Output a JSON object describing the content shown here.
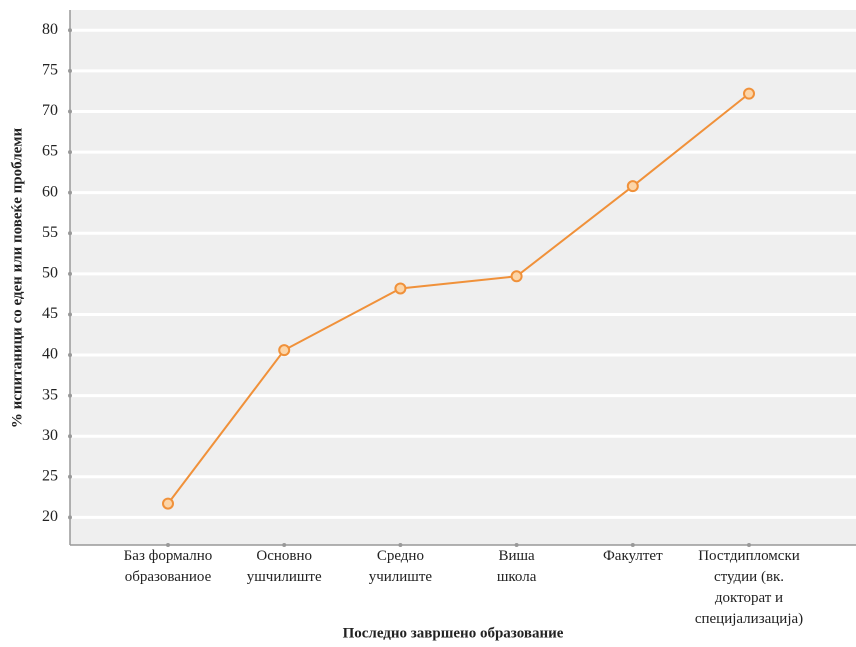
{
  "chart_data": {
    "type": "line",
    "x_label": "Последно завршено образование",
    "y_label": "% испитаници со еден или повеќе проблеми",
    "categories": [
      "Баз формално\nобразованиое",
      "Основно\nушчилиште",
      "Средно\nучилиште",
      "Виша\nшкола",
      "Факултет",
      "Постдипломски\nстудии (вк.\nдокторат и\nспецијализација)"
    ],
    "series": [
      {
        "name": "",
        "color": "#f0913a",
        "values": [
          21.7,
          40.6,
          48.2,
          49.7,
          60.8,
          72.2
        ]
      }
    ],
    "ylim": [
      16.6,
      82.5
    ],
    "yticks": [
      20,
      25,
      30,
      35,
      40,
      45,
      50,
      55,
      60,
      65,
      70,
      75,
      80
    ],
    "grid": true
  }
}
